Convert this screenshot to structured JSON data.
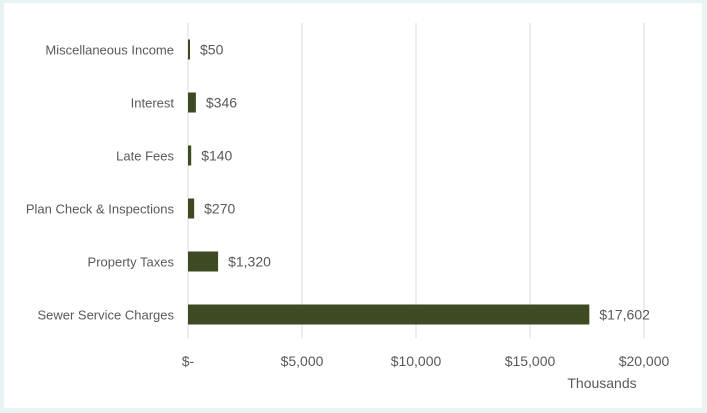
{
  "chart_data": {
    "type": "bar",
    "orientation": "horizontal",
    "categories": [
      "Miscellaneous Income",
      "Interest",
      "Late Fees",
      "Plan Check & Inspections",
      "Property Taxes",
      "Sewer Service Charges"
    ],
    "values": [
      50,
      346,
      140,
      270,
      1320,
      17602
    ],
    "data_labels": [
      "$50",
      "$346",
      "$140",
      "$270",
      "$1,320",
      "$17,602"
    ],
    "x_ticks": [
      0,
      5000,
      10000,
      15000,
      20000
    ],
    "x_tick_labels": [
      "$-",
      "$5,000",
      "$10,000",
      "$15,000",
      "$20,000"
    ],
    "xlim": [
      0,
      20000
    ],
    "unit_label": "Thousands",
    "grid": true,
    "colors": {
      "bar": "#3e4a22",
      "grid": "#d9d9d9",
      "text": "#595959",
      "background": "#e8f4f4"
    }
  }
}
